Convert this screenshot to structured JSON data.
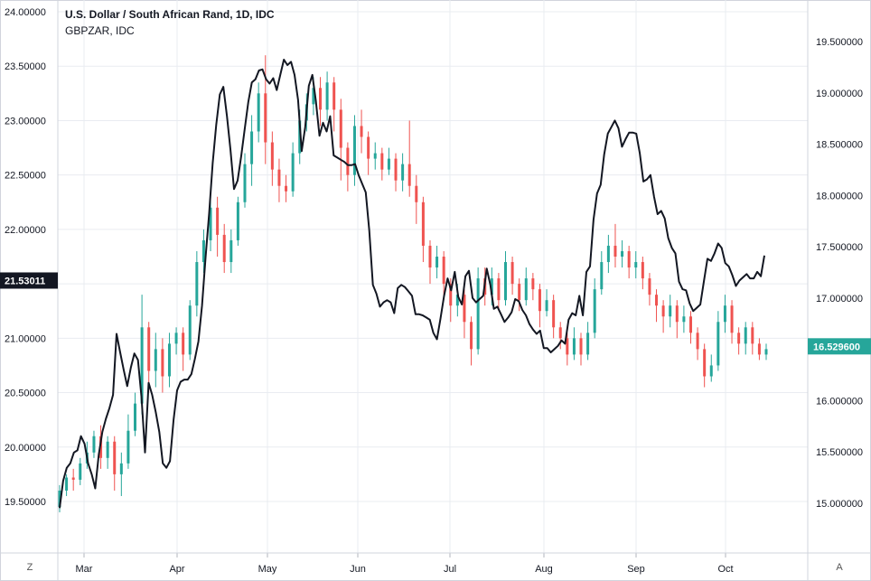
{
  "header": {
    "title": "U.S. Dollar / South African Rand, 1D, IDC",
    "compare_symbol": "GBPZAR, IDC"
  },
  "controls": {
    "zoom_label": "Z",
    "auto_label": "A"
  },
  "colors": {
    "up": "#26a69a",
    "down": "#ef5350",
    "line": "#131722",
    "left_badge_bg": "#131722",
    "right_badge_bg": "#26a69a",
    "grid": "#e9ecf1"
  },
  "chart_data": {
    "type": "candlestick+line",
    "title": "U.S. Dollar / South African Rand, 1D, IDC",
    "x_labels": [
      "Mar",
      "Apr",
      "May",
      "Jun",
      "Jul",
      "Aug",
      "Sep",
      "Oct"
    ],
    "left_axis": {
      "ticks": [
        "19.50000",
        "20.00000",
        "20.50000",
        "21.00000",
        "21.50000",
        "22.00000",
        "22.50000",
        "23.00000",
        "23.50000",
        "24.00000"
      ],
      "range": [
        19.25,
        24.05
      ],
      "last_value_label": "21.53011"
    },
    "right_axis": {
      "ticks": [
        "15.000000",
        "15.500000",
        "16.000000",
        "16.500000",
        "17.000000",
        "17.500000",
        "18.000000",
        "18.500000",
        "19.000000",
        "19.500000"
      ],
      "range": [
        14.7,
        19.9
      ],
      "last_value_label": "16.529600"
    },
    "line_series": {
      "name": "GBPZAR",
      "values": [
        19.44,
        19.69,
        19.81,
        19.85,
        19.95,
        19.97,
        20.1,
        20.03,
        19.85,
        19.75,
        19.62,
        19.93,
        20.14,
        20.26,
        20.36,
        20.48,
        21.04,
        20.87,
        20.71,
        20.56,
        20.73,
        20.86,
        20.8,
        20.46,
        19.95,
        20.59,
        20.48,
        20.32,
        20.14,
        19.85,
        19.81,
        19.87,
        20.25,
        20.52,
        20.6,
        20.62,
        20.62,
        20.67,
        20.81,
        20.97,
        21.3,
        21.74,
        22.15,
        22.61,
        22.96,
        23.24,
        23.31,
        23.04,
        22.73,
        22.37,
        22.45,
        22.67,
        22.92,
        23.17,
        23.35,
        23.38,
        23.46,
        23.47,
        23.38,
        23.34,
        23.39,
        23.28,
        23.42,
        23.56,
        23.51,
        23.54,
        23.42,
        23.19,
        22.72,
        22.94,
        23.32,
        23.42,
        23.18,
        22.86,
        22.98,
        22.9,
        23.04,
        22.68,
        22.66,
        22.64,
        22.62,
        22.59,
        22.59,
        22.6,
        22.5,
        22.42,
        22.34,
        21.99,
        21.49,
        21.41,
        21.29,
        21.33,
        21.35,
        21.33,
        21.23,
        21.46,
        21.49,
        21.47,
        21.43,
        21.39,
        21.22,
        21.22,
        21.21,
        21.19,
        21.17,
        21.05,
        20.99,
        21.18,
        21.39,
        21.55,
        21.44,
        21.61,
        21.38,
        21.31,
        21.57,
        21.62,
        21.37,
        21.33,
        21.36,
        21.39,
        21.64,
        21.49,
        21.27,
        21.29,
        21.22,
        21.15,
        21.19,
        21.24,
        21.36,
        21.34,
        21.26,
        21.21,
        21.13,
        21.08,
        21.04,
        21.07,
        20.91,
        20.91,
        20.87,
        20.9,
        20.93,
        20.98,
        20.95,
        21.17,
        21.23,
        21.21,
        21.39,
        21.21,
        21.61,
        21.66,
        22.09,
        22.33,
        22.41,
        22.69,
        22.88,
        22.94,
        23.0,
        22.93,
        22.76,
        22.83,
        22.89,
        22.89,
        22.88,
        22.7,
        22.44,
        22.46,
        22.5,
        22.3,
        22.14,
        22.17,
        22.1,
        21.92,
        21.83,
        21.78,
        21.52,
        21.45,
        21.44,
        21.32,
        21.25,
        21.28,
        21.31,
        21.52,
        21.73,
        21.71,
        21.78,
        21.87,
        21.83,
        21.69,
        21.66,
        21.58,
        21.48,
        21.53,
        21.56,
        21.59,
        21.55,
        21.55,
        21.61,
        21.57,
        21.76
      ]
    },
    "candles": [
      [
        19.45,
        19.6,
        19.4,
        19.65
      ],
      [
        19.6,
        19.72,
        19.55,
        19.75
      ],
      [
        19.72,
        19.7,
        19.6,
        19.8
      ],
      [
        19.7,
        19.85,
        19.65,
        19.9
      ],
      [
        19.85,
        19.95,
        19.8,
        20.05
      ],
      [
        19.95,
        20.1,
        19.9,
        20.15
      ],
      [
        20.1,
        19.9,
        19.8,
        20.2
      ],
      [
        19.9,
        20.05,
        19.8,
        20.1
      ],
      [
        20.05,
        19.75,
        19.6,
        20.1
      ],
      [
        19.75,
        19.85,
        19.55,
        19.95
      ],
      [
        19.85,
        20.15,
        19.8,
        20.3
      ],
      [
        20.15,
        20.4,
        20.1,
        20.5
      ],
      [
        20.4,
        21.1,
        20.3,
        21.4
      ],
      [
        21.1,
        20.7,
        20.5,
        21.15
      ],
      [
        20.7,
        20.9,
        20.55,
        21.05
      ],
      [
        20.9,
        20.65,
        20.5,
        21.0
      ],
      [
        20.65,
        20.95,
        20.55,
        21.05
      ],
      [
        20.95,
        21.05,
        20.85,
        21.1
      ],
      [
        21.05,
        20.85,
        20.7,
        21.1
      ],
      [
        20.85,
        21.3,
        20.8,
        21.35
      ],
      [
        21.3,
        21.7,
        21.2,
        21.8
      ],
      [
        21.7,
        21.9,
        21.6,
        22.0
      ],
      [
        21.9,
        22.2,
        21.8,
        22.3
      ],
      [
        22.2,
        21.95,
        21.75,
        22.3
      ],
      [
        21.95,
        21.7,
        21.6,
        22.05
      ],
      [
        21.7,
        21.9,
        21.6,
        22.0
      ],
      [
        21.9,
        22.25,
        21.85,
        22.3
      ],
      [
        22.25,
        22.6,
        22.2,
        22.7
      ],
      [
        22.6,
        22.9,
        22.4,
        23.05
      ],
      [
        22.9,
        23.25,
        22.8,
        23.35
      ],
      [
        23.25,
        22.8,
        22.6,
        23.6
      ],
      [
        22.8,
        22.55,
        22.4,
        22.9
      ],
      [
        22.55,
        22.4,
        22.25,
        22.65
      ],
      [
        22.4,
        22.35,
        22.25,
        22.5
      ],
      [
        22.35,
        22.7,
        22.3,
        22.8
      ],
      [
        22.7,
        23.0,
        22.6,
        23.1
      ],
      [
        23.0,
        23.15,
        22.9,
        23.25
      ],
      [
        23.15,
        23.3,
        23.05,
        23.4
      ],
      [
        23.3,
        23.1,
        22.95,
        23.4
      ],
      [
        23.1,
        23.35,
        23.0,
        23.45
      ],
      [
        23.35,
        23.1,
        22.9,
        23.4
      ],
      [
        23.1,
        22.75,
        22.45,
        23.2
      ],
      [
        22.75,
        22.5,
        22.35,
        22.8
      ],
      [
        22.5,
        22.95,
        22.4,
        23.05
      ],
      [
        22.95,
        22.85,
        22.7,
        23.1
      ],
      [
        22.85,
        22.65,
        22.5,
        22.9
      ],
      [
        22.65,
        22.7,
        22.55,
        22.8
      ],
      [
        22.7,
        22.55,
        22.45,
        22.75
      ],
      [
        22.55,
        22.65,
        22.5,
        22.75
      ],
      [
        22.65,
        22.45,
        22.35,
        22.7
      ],
      [
        22.45,
        22.6,
        22.35,
        22.7
      ],
      [
        22.6,
        22.4,
        22.3,
        23.0
      ],
      [
        22.4,
        22.25,
        22.05,
        22.5
      ],
      [
        22.25,
        21.85,
        21.7,
        22.3
      ],
      [
        21.85,
        21.65,
        21.5,
        21.9
      ],
      [
        21.65,
        21.75,
        21.55,
        21.85
      ],
      [
        21.75,
        21.5,
        21.35,
        21.8
      ],
      [
        21.5,
        21.3,
        21.15,
        21.55
      ],
      [
        21.3,
        21.4,
        21.2,
        21.5
      ],
      [
        21.4,
        21.15,
        21.0,
        21.45
      ],
      [
        21.15,
        20.9,
        20.75,
        21.2
      ],
      [
        20.9,
        21.55,
        20.85,
        21.65
      ],
      [
        21.55,
        21.4,
        21.3,
        21.65
      ],
      [
        21.4,
        21.55,
        21.3,
        21.65
      ],
      [
        21.55,
        21.35,
        21.25,
        21.6
      ],
      [
        21.35,
        21.7,
        21.3,
        21.8
      ],
      [
        21.7,
        21.5,
        21.4,
        21.75
      ],
      [
        21.5,
        21.35,
        21.25,
        21.55
      ],
      [
        21.35,
        21.55,
        21.3,
        21.65
      ],
      [
        21.55,
        21.45,
        21.35,
        21.6
      ],
      [
        21.45,
        21.25,
        21.1,
        21.5
      ],
      [
        21.25,
        21.35,
        21.2,
        21.45
      ],
      [
        21.35,
        21.1,
        21.0,
        21.4
      ],
      [
        21.1,
        21.0,
        20.9,
        21.15
      ],
      [
        21.0,
        20.85,
        20.75,
        21.05
      ],
      [
        20.85,
        21.0,
        20.8,
        21.1
      ],
      [
        21.0,
        20.85,
        20.75,
        21.05
      ],
      [
        20.85,
        21.05,
        20.8,
        21.15
      ],
      [
        21.05,
        21.45,
        21.0,
        21.55
      ],
      [
        21.45,
        21.7,
        21.4,
        21.8
      ],
      [
        21.7,
        21.85,
        21.6,
        21.95
      ],
      [
        21.85,
        21.75,
        21.65,
        22.05
      ],
      [
        21.75,
        21.8,
        21.65,
        21.9
      ],
      [
        21.8,
        21.65,
        21.55,
        21.85
      ],
      [
        21.65,
        21.7,
        21.55,
        21.8
      ],
      [
        21.7,
        21.55,
        21.45,
        21.75
      ],
      [
        21.55,
        21.4,
        21.3,
        21.6
      ],
      [
        21.4,
        21.3,
        21.15,
        21.45
      ],
      [
        21.3,
        21.2,
        21.05,
        21.35
      ],
      [
        21.2,
        21.3,
        21.1,
        21.4
      ],
      [
        21.3,
        21.15,
        21.0,
        21.35
      ],
      [
        21.15,
        21.2,
        21.05,
        21.3
      ],
      [
        21.2,
        21.05,
        20.95,
        21.25
      ],
      [
        21.05,
        20.9,
        20.8,
        21.1
      ],
      [
        20.9,
        20.65,
        20.55,
        20.95
      ],
      [
        20.65,
        20.75,
        20.6,
        20.85
      ],
      [
        20.75,
        21.15,
        20.7,
        21.25
      ],
      [
        21.15,
        21.3,
        21.05,
        21.4
      ],
      [
        21.3,
        21.05,
        20.95,
        21.35
      ],
      [
        21.05,
        20.95,
        20.85,
        21.1
      ],
      [
        20.95,
        21.1,
        20.85,
        21.15
      ],
      [
        21.1,
        20.95,
        20.85,
        21.15
      ],
      [
        20.95,
        20.85,
        20.8,
        21.0
      ],
      [
        20.85,
        20.9,
        20.8,
        20.95
      ]
    ]
  }
}
